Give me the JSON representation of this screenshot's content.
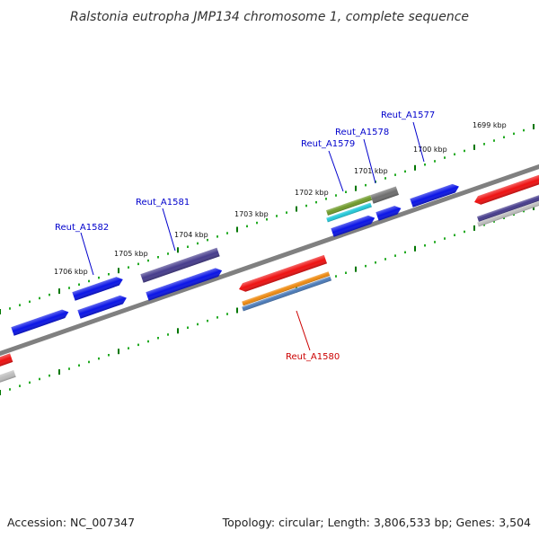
{
  "title": "Ralstonia eutropha JMP134 chromosome 1, complete sequence",
  "footer": {
    "accession": "Accession: NC_007347",
    "summary": "Topology: circular; Length: 3,806,533 bp; Genes: 3,504"
  },
  "scale_labels": [
    "1699 kbp",
    "1700 kbp",
    "1701 kbp",
    "1702 kbp",
    "1703 kbp",
    "1704 kbp",
    "1705 kbp",
    "1706 kbp"
  ],
  "gene_labels": [
    {
      "text": "Reut_A1577",
      "color": "#0000cc"
    },
    {
      "text": "Reut_A1578",
      "color": "#0000cc"
    },
    {
      "text": "Reut_A1579",
      "color": "#0000cc"
    },
    {
      "text": "Reut_A1581",
      "color": "#0000cc"
    },
    {
      "text": "Reut_A1582",
      "color": "#0000cc"
    },
    {
      "text": "Reut_A1580",
      "color": "#cc0000"
    }
  ],
  "colors": {
    "backbone": "#808080",
    "tick_major": "#007700",
    "tick_minor": "#22aa22",
    "gene_blue": "#0a14e6",
    "gene_purple": "#463c8c",
    "gene_red": "#ee1111",
    "gene_orange": "#ee8a10",
    "gene_steel": "#4a7ab8",
    "gene_olive": "#6f9a2a",
    "gene_cyan": "#22c8d8",
    "gene_gray": "#6e6e6e",
    "gene_lightgray": "#bcbcbc"
  }
}
